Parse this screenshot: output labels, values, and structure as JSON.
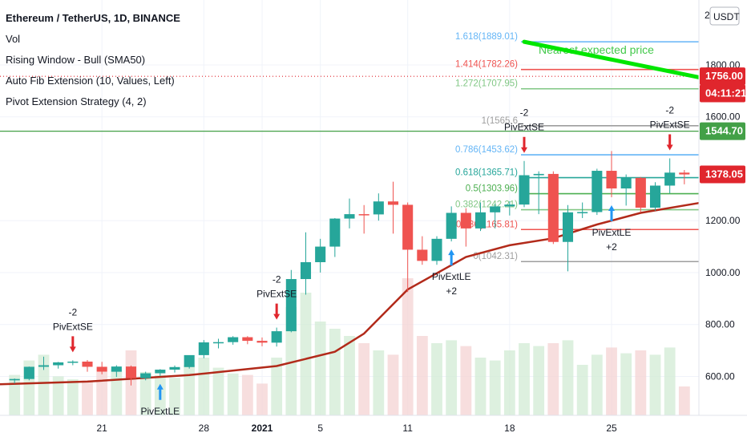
{
  "legend": {
    "symbol": "Ethereum / TetherUS, 1D, BINANCE",
    "lines": [
      "Vol",
      "Rising Window - Bull (SMA50)",
      "Auto Fib Extension (10, Values, Left)",
      "Pivot Extension Strategy (4, 2)"
    ]
  },
  "currency_label": "USDT",
  "top_axis_fragment": "2",
  "annotation_text": "Nearest expected price",
  "price_tags": [
    {
      "text": "1756.00",
      "price": 1756,
      "color": "#e0262d"
    },
    {
      "text": "04:11:21",
      "price": 1690,
      "color": "#e0262d"
    },
    {
      "text": "1544.70",
      "price": 1544.7,
      "color": "#43a047"
    },
    {
      "text": "1378.05",
      "price": 1378.05,
      "color": "#e0262d"
    }
  ],
  "y_ticks": [
    {
      "text": "1800.00",
      "value": 1800
    },
    {
      "text": "1600.00",
      "value": 1600
    },
    {
      "text": "1200.00",
      "value": 1200
    },
    {
      "text": "1000.00",
      "value": 1000
    },
    {
      "text": "800.00",
      "value": 800
    },
    {
      "text": "600.00",
      "value": 600
    }
  ],
  "x_ticks": [
    {
      "text": "21",
      "date": "2020-12-21",
      "bold": false
    },
    {
      "text": "28",
      "date": "2020-12-28",
      "bold": false
    },
    {
      "text": "2021",
      "date": "2021-01-01",
      "bold": true
    },
    {
      "text": "5",
      "date": "2021-01-05",
      "bold": false
    },
    {
      "text": "11",
      "date": "2021-01-11",
      "bold": false
    },
    {
      "text": "18",
      "date": "2021-01-18",
      "bold": false
    },
    {
      "text": "25",
      "date": "2021-01-25",
      "bold": false
    },
    {
      "text": "",
      "date": "2021-01-31",
      "bold": false
    }
  ],
  "fib_levels": [
    {
      "ratio": "1.618",
      "value": 1889.01,
      "label": "1.618(1889.01)",
      "color": "#64b5f6"
    },
    {
      "ratio": "1.414",
      "value": 1782.26,
      "label": "1.414(1782.26)",
      "color": "#ef5350"
    },
    {
      "ratio": "1.272",
      "value": 1707.95,
      "label": "1.272(1707.95)",
      "color": "#81c784"
    },
    {
      "ratio": "1",
      "value": 1565.6,
      "label": "1(1565.6",
      "color": "#9e9e9e"
    },
    {
      "ratio": "0.786",
      "value": 1453.62,
      "label": "0.786(1453.62)",
      "color": "#64b5f6"
    },
    {
      "ratio": "0.618",
      "value": 1365.71,
      "label": "0.618(1365.71)",
      "color": "#26a69a"
    },
    {
      "ratio": "0.5",
      "value": 1303.96,
      "label": "0.5(1303.96)",
      "color": "#4caf50"
    },
    {
      "ratio": "0.382",
      "value": 1242.21,
      "label": "0.382(1242.21)",
      "color": "#81c784"
    },
    {
      "ratio": "0.236",
      "value": 1165.81,
      "label": "0.236(1165.81)",
      "color": "#ef5350"
    },
    {
      "ratio": "0",
      "value": 1042.31,
      "label": "0(1042.31)",
      "color": "#9e9e9e"
    }
  ],
  "signals": [
    {
      "type": "short",
      "date": "2020-12-19",
      "label": "PivExtSE",
      "count": "-2"
    },
    {
      "type": "long",
      "date": "2020-12-25",
      "label": "PivExtLE",
      "count": ""
    },
    {
      "type": "short",
      "date": "2021-01-02",
      "label": "PivExtSE",
      "count": "-2"
    },
    {
      "type": "long",
      "date": "2021-01-14",
      "label": "PivExtLE",
      "count": "+2"
    },
    {
      "type": "short",
      "date": "2021-01-19",
      "label": "PivExtSE",
      "count": "-2"
    },
    {
      "type": "long",
      "date": "2021-01-25",
      "label": "PivExtLE",
      "count": "+2"
    },
    {
      "type": "short",
      "date": "2021-01-29",
      "label": "PivExtSE",
      "count": "-2"
    }
  ],
  "chart_data": {
    "type": "candlestick",
    "title": "Ethereum / TetherUS, 1D, BINANCE",
    "ylim": [
      450,
      2050
    ],
    "x_range": [
      "2020-12-14",
      "2021-01-31"
    ],
    "candles": [
      {
        "date": "2020-12-15",
        "open": 585,
        "high": 592,
        "low": 573,
        "close": 590,
        "volume": 0.28
      },
      {
        "date": "2020-12-16",
        "open": 590,
        "high": 638,
        "low": 585,
        "close": 637,
        "volume": 0.38
      },
      {
        "date": "2020-12-17",
        "open": 637,
        "high": 676,
        "low": 625,
        "close": 643,
        "volume": 0.42
      },
      {
        "date": "2020-12-18",
        "open": 643,
        "high": 656,
        "low": 630,
        "close": 654,
        "volume": 0.27
      },
      {
        "date": "2020-12-19",
        "open": 654,
        "high": 662,
        "low": 643,
        "close": 657,
        "volume": 0.25
      },
      {
        "date": "2020-12-20",
        "open": 657,
        "high": 663,
        "low": 618,
        "close": 637,
        "volume": 0.24
      },
      {
        "date": "2020-12-21",
        "open": 637,
        "high": 656,
        "low": 608,
        "close": 618,
        "volume": 0.3
      },
      {
        "date": "2020-12-22",
        "open": 618,
        "high": 643,
        "low": 598,
        "close": 638,
        "volume": 0.32
      },
      {
        "date": "2020-12-23",
        "open": 638,
        "high": 642,
        "low": 565,
        "close": 593,
        "volume": 0.45
      },
      {
        "date": "2020-12-24",
        "open": 593,
        "high": 618,
        "low": 585,
        "close": 612,
        "volume": 0.3
      },
      {
        "date": "2020-12-25",
        "open": 612,
        "high": 628,
        "low": 602,
        "close": 626,
        "volume": 0.28
      },
      {
        "date": "2020-12-26",
        "open": 626,
        "high": 642,
        "low": 615,
        "close": 636,
        "volume": 0.26
      },
      {
        "date": "2020-12-27",
        "open": 636,
        "high": 675,
        "low": 630,
        "close": 682,
        "volume": 0.35
      },
      {
        "date": "2020-12-28",
        "open": 682,
        "high": 740,
        "low": 670,
        "close": 731,
        "volume": 0.4
      },
      {
        "date": "2020-12-29",
        "open": 731,
        "high": 745,
        "low": 708,
        "close": 732,
        "volume": 0.33
      },
      {
        "date": "2020-12-30",
        "open": 732,
        "high": 755,
        "low": 722,
        "close": 751,
        "volume": 0.29
      },
      {
        "date": "2020-12-31",
        "open": 751,
        "high": 755,
        "low": 724,
        "close": 737,
        "volume": 0.28
      },
      {
        "date": "2021-01-01",
        "open": 737,
        "high": 750,
        "low": 716,
        "close": 730,
        "volume": 0.22
      },
      {
        "date": "2021-01-02",
        "open": 730,
        "high": 788,
        "low": 715,
        "close": 774,
        "volume": 0.4
      },
      {
        "date": "2021-01-03",
        "open": 774,
        "high": 1010,
        "low": 770,
        "close": 975,
        "volume": 0.75
      },
      {
        "date": "2021-01-04",
        "open": 975,
        "high": 1155,
        "low": 915,
        "close": 1040,
        "volume": 0.85
      },
      {
        "date": "2021-01-05",
        "open": 1040,
        "high": 1130,
        "low": 1000,
        "close": 1100,
        "volume": 0.65
      },
      {
        "date": "2021-01-06",
        "open": 1100,
        "high": 1210,
        "low": 1060,
        "close": 1208,
        "volume": 0.6
      },
      {
        "date": "2021-01-07",
        "open": 1208,
        "high": 1285,
        "low": 1170,
        "close": 1225,
        "volume": 0.55
      },
      {
        "date": "2021-01-08",
        "open": 1225,
        "high": 1260,
        "low": 1150,
        "close": 1224,
        "volume": 0.5
      },
      {
        "date": "2021-01-09",
        "open": 1224,
        "high": 1305,
        "low": 1200,
        "close": 1274,
        "volume": 0.45
      },
      {
        "date": "2021-01-10",
        "open": 1274,
        "high": 1350,
        "low": 1150,
        "close": 1261,
        "volume": 0.42
      },
      {
        "date": "2021-01-11",
        "open": 1261,
        "high": 1270,
        "low": 925,
        "close": 1088,
        "volume": 0.95
      },
      {
        "date": "2021-01-12",
        "open": 1088,
        "high": 1140,
        "low": 1030,
        "close": 1045,
        "volume": 0.55
      },
      {
        "date": "2021-01-13",
        "open": 1045,
        "high": 1140,
        "low": 1030,
        "close": 1130,
        "volume": 0.5
      },
      {
        "date": "2021-01-14",
        "open": 1130,
        "high": 1255,
        "low": 1120,
        "close": 1230,
        "volume": 0.52
      },
      {
        "date": "2021-01-15",
        "open": 1230,
        "high": 1248,
        "low": 1100,
        "close": 1170,
        "volume": 0.48
      },
      {
        "date": "2021-01-16",
        "open": 1170,
        "high": 1270,
        "low": 1160,
        "close": 1232,
        "volume": 0.4
      },
      {
        "date": "2021-01-17",
        "open": 1232,
        "high": 1265,
        "low": 1170,
        "close": 1255,
        "volume": 0.38
      },
      {
        "date": "2021-01-18",
        "open": 1255,
        "high": 1275,
        "low": 1220,
        "close": 1262,
        "volume": 0.45
      },
      {
        "date": "2021-01-19",
        "open": 1262,
        "high": 1430,
        "low": 1252,
        "close": 1375,
        "volume": 0.5
      },
      {
        "date": "2021-01-20",
        "open": 1375,
        "high": 1390,
        "low": 1225,
        "close": 1380,
        "volume": 0.48
      },
      {
        "date": "2021-01-21",
        "open": 1380,
        "high": 1390,
        "low": 1110,
        "close": 1118,
        "volume": 0.5
      },
      {
        "date": "2021-01-22",
        "open": 1118,
        "high": 1260,
        "low": 1005,
        "close": 1232,
        "volume": 0.52
      },
      {
        "date": "2021-01-23",
        "open": 1232,
        "high": 1270,
        "low": 1210,
        "close": 1233,
        "volume": 0.35
      },
      {
        "date": "2021-01-24",
        "open": 1233,
        "high": 1400,
        "low": 1222,
        "close": 1392,
        "volume": 0.42
      },
      {
        "date": "2021-01-25",
        "open": 1392,
        "high": 1468,
        "low": 1290,
        "close": 1324,
        "volume": 0.47
      },
      {
        "date": "2021-01-26",
        "open": 1324,
        "high": 1378,
        "low": 1258,
        "close": 1365,
        "volume": 0.43
      },
      {
        "date": "2021-01-27",
        "open": 1365,
        "high": 1368,
        "low": 1232,
        "close": 1250,
        "volume": 0.45
      },
      {
        "date": "2021-01-28",
        "open": 1250,
        "high": 1348,
        "low": 1238,
        "close": 1335,
        "volume": 0.42
      },
      {
        "date": "2021-01-29",
        "open": 1335,
        "high": 1440,
        "low": 1305,
        "close": 1385,
        "volume": 0.47
      },
      {
        "date": "2021-01-30",
        "open": 1385,
        "high": 1395,
        "low": 1340,
        "close": 1378,
        "volume": 0.2
      }
    ],
    "sma50": [
      {
        "date": "2020-12-14",
        "value": 570
      },
      {
        "date": "2020-12-20",
        "value": 580
      },
      {
        "date": "2020-12-27",
        "value": 605
      },
      {
        "date": "2021-01-02",
        "value": 640
      },
      {
        "date": "2021-01-06",
        "value": 695
      },
      {
        "date": "2021-01-08",
        "value": 765
      },
      {
        "date": "2021-01-11",
        "value": 935
      },
      {
        "date": "2021-01-15",
        "value": 1060
      },
      {
        "date": "2021-01-18",
        "value": 1105
      },
      {
        "date": "2021-01-21",
        "value": 1132
      },
      {
        "date": "2021-01-24",
        "value": 1185
      },
      {
        "date": "2021-01-27",
        "value": 1230
      },
      {
        "date": "2021-01-31",
        "value": 1268
      }
    ],
    "horizontal_lines": [
      {
        "value": 1544.7,
        "color": "#43a047"
      },
      {
        "value": 1756,
        "color": "#e0262d",
        "dotted": true
      }
    ],
    "trend_arrow": {
      "from": {
        "date": "2021-01-19",
        "value": 1889
      },
      "to": {
        "date": "2021-01-31",
        "value": 1752
      },
      "color": "#00e600"
    }
  }
}
